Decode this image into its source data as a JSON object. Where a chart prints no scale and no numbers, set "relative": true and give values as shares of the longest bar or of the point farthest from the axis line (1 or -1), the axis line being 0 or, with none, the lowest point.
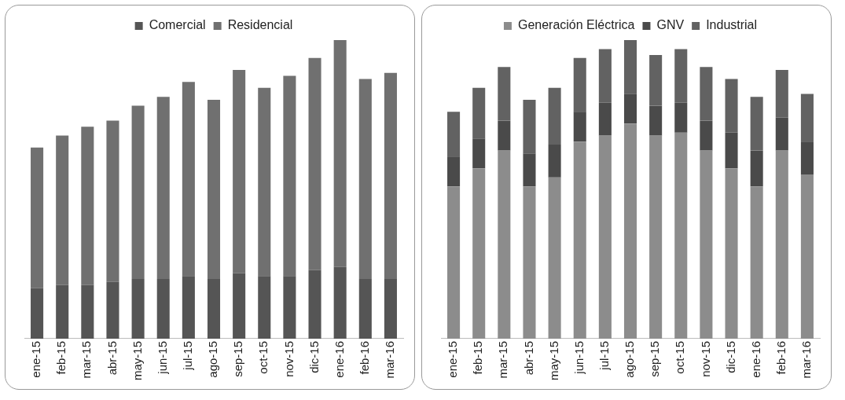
{
  "chart_data": [
    {
      "type": "bar",
      "relative": true,
      "stacked": true,
      "grid": false,
      "legend": "top",
      "categories": [
        "ene-15",
        "feb-15",
        "mar-15",
        "abr-15",
        "may-15",
        "jun-15",
        "jul-15",
        "ago-15",
        "sep-15",
        "oct-15",
        "nov-15",
        "dic-15",
        "ene-16",
        "feb-16",
        "mar-16"
      ],
      "series": [
        {
          "name": "Comercial",
          "color": "#555555",
          "values": [
            0.17,
            0.18,
            0.18,
            0.19,
            0.2,
            0.2,
            0.21,
            0.2,
            0.22,
            0.21,
            0.21,
            0.23,
            0.24,
            0.2,
            0.2
          ]
        },
        {
          "name": "Residencial",
          "color": "#707070",
          "values": [
            0.47,
            0.5,
            0.53,
            0.54,
            0.58,
            0.61,
            0.65,
            0.6,
            0.68,
            0.63,
            0.67,
            0.71,
            0.76,
            0.67,
            0.69
          ]
        }
      ]
    },
    {
      "type": "bar",
      "relative": true,
      "stacked": true,
      "grid": false,
      "legend": "top",
      "categories": [
        "ene-15",
        "feb-15",
        "mar-15",
        "abr-15",
        "may-15",
        "jun-15",
        "jul-15",
        "ago-15",
        "sep-15",
        "oct-15",
        "nov-15",
        "dic-15",
        "ene-16",
        "feb-16",
        "mar-16"
      ],
      "series": [
        {
          "name": "Generación Eléctrica",
          "color": "#8c8c8c",
          "values": [
            0.51,
            0.57,
            0.63,
            0.51,
            0.54,
            0.66,
            0.68,
            0.72,
            0.68,
            0.69,
            0.63,
            0.57,
            0.51,
            0.63,
            0.55
          ]
        },
        {
          "name": "GNV",
          "color": "#4a4a4a",
          "values": [
            0.1,
            0.1,
            0.1,
            0.11,
            0.11,
            0.1,
            0.11,
            0.1,
            0.1,
            0.1,
            0.1,
            0.12,
            0.12,
            0.11,
            0.11
          ]
        },
        {
          "name": "Industrial",
          "color": "#626262",
          "values": [
            0.15,
            0.17,
            0.18,
            0.18,
            0.19,
            0.18,
            0.18,
            0.18,
            0.17,
            0.18,
            0.18,
            0.18,
            0.18,
            0.16,
            0.16
          ]
        }
      ]
    }
  ]
}
